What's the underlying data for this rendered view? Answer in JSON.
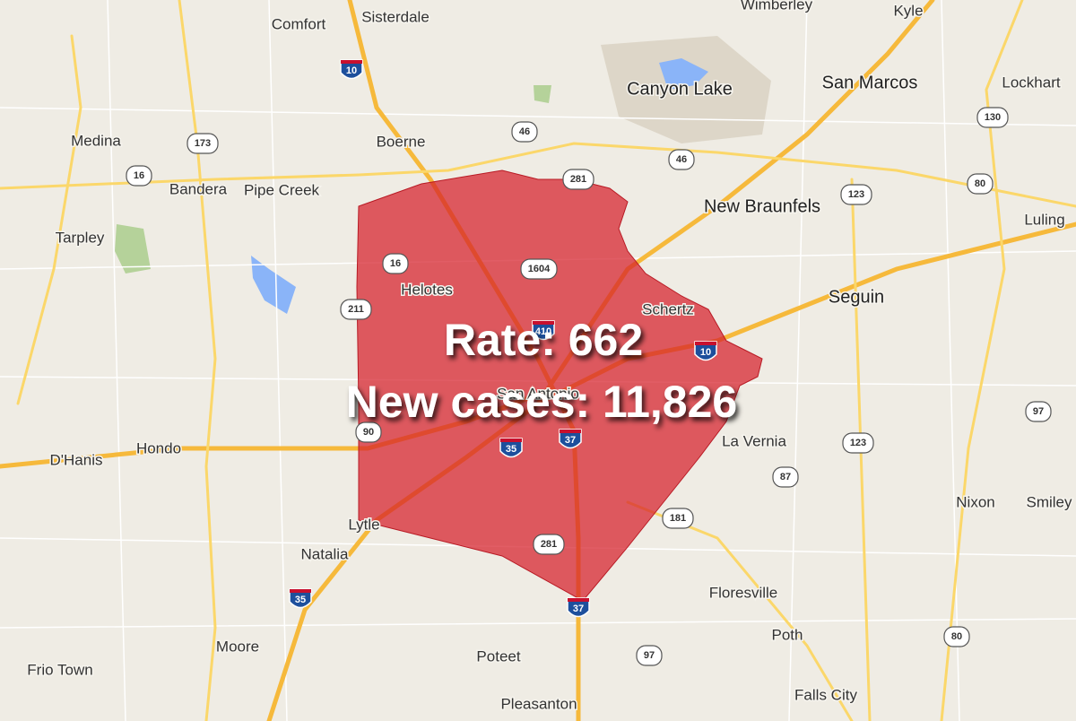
{
  "map": {
    "places": [
      "Wimberley",
      "Kyle",
      "Comfort",
      "Sisterdale",
      "Canyon Lake",
      "San Marcos",
      "Lockhart",
      "Medina",
      "Boerne",
      "Bandera",
      "Pipe Creek",
      "New Braunfels",
      "Luling",
      "Tarpley",
      "Helotes",
      "Schertz",
      "Seguin",
      "San Antonio",
      "Hondo",
      "D'Hanis",
      "La Vernia",
      "Nixon",
      "Smiley",
      "Lytle",
      "Natalia",
      "Floresville",
      "Moore",
      "Poth",
      "Poteet",
      "Frio Town",
      "Falls City",
      "Pleasanton"
    ],
    "interstate_shields": [
      "10",
      "10",
      "35",
      "37",
      "35",
      "37",
      "410"
    ],
    "route_shields": [
      "173",
      "16",
      "46",
      "46",
      "281",
      "1604",
      "16",
      "211",
      "90",
      "123",
      "80",
      "130",
      "123",
      "87",
      "181",
      "281",
      "97",
      "97",
      "80"
    ],
    "overlay": {
      "rate": "Rate: 662",
      "new_cases": "New cases: 11,826"
    }
  }
}
